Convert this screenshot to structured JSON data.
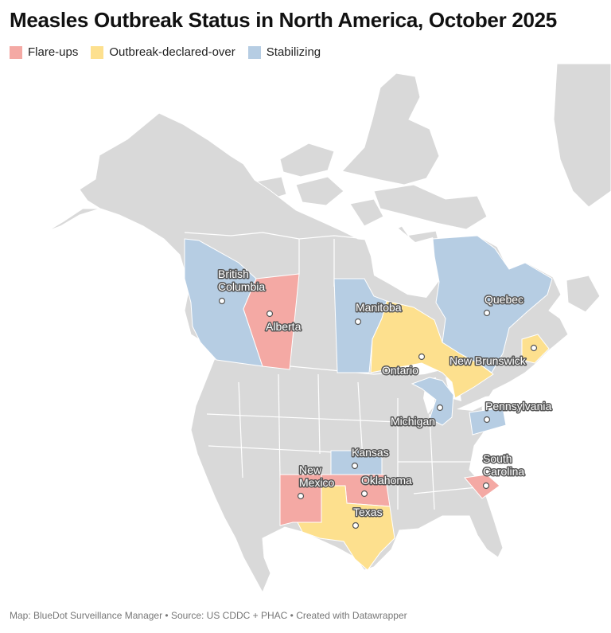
{
  "title": "Measles Outbreak Status in North America, October 2025",
  "legend": [
    {
      "label": "Flare-ups",
      "color": "#f4a9a4"
    },
    {
      "label": "Outbreak-declared-over",
      "color": "#fde08e"
    },
    {
      "label": "Stabilizing",
      "color": "#b6cde3"
    }
  ],
  "regions": {
    "british_columbia": {
      "line1": "British",
      "line2": "Columbia",
      "status": "Stabilizing"
    },
    "alberta": {
      "label": "Alberta",
      "status": "Flare-ups"
    },
    "manitoba": {
      "label": "Manitoba",
      "status": "Stabilizing"
    },
    "ontario": {
      "label": "Ontario",
      "status": "Outbreak-declared-over"
    },
    "quebec": {
      "label": "Quebec",
      "status": "Stabilizing"
    },
    "new_brunswick": {
      "label": "New Brunswick",
      "status": "Outbreak-declared-over"
    },
    "michigan": {
      "label": "Michigan",
      "status": "Stabilizing"
    },
    "pennsylvania": {
      "label": "Pennsylvania",
      "status": "Stabilizing"
    },
    "kansas": {
      "label": "Kansas",
      "status": "Stabilizing"
    },
    "new_mexico": {
      "line1": "New",
      "line2": "Mexico",
      "status": "Flare-ups"
    },
    "oklahoma": {
      "label": "Oklahoma",
      "status": "Flare-ups"
    },
    "texas": {
      "label": "Texas",
      "status": "Outbreak-declared-over"
    },
    "south_carolina": {
      "line1": "South",
      "line2": "Carolina",
      "status": "Flare-ups"
    }
  },
  "colors": {
    "land": "#d9d9d9",
    "flare": "#f4a9a4",
    "over": "#fde08e",
    "stable": "#b6cde3"
  },
  "footer": "Map: BlueDot Surveillance Manager • Source: US CDDC + PHAC • Created with Datawrapper"
}
